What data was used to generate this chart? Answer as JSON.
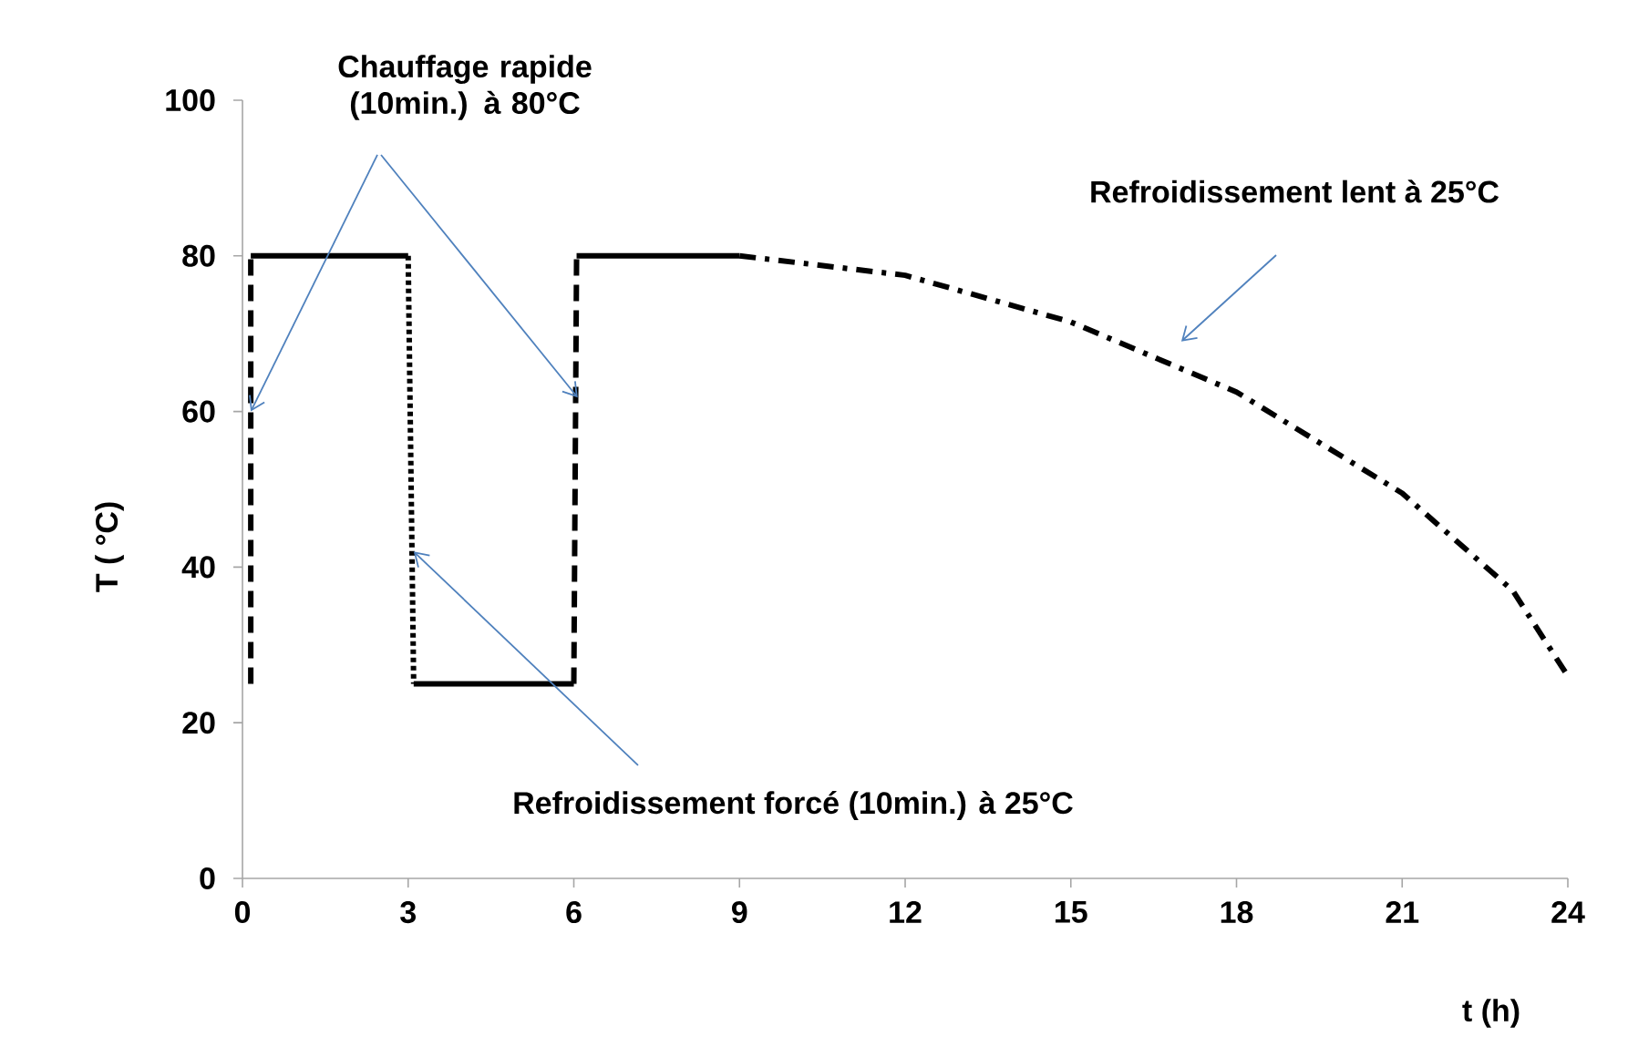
{
  "chart_data": {
    "type": "line",
    "xlabel": "t (h)",
    "ylabel": "T ( °C)",
    "xlim": [
      0,
      24
    ],
    "ylim": [
      0,
      100
    ],
    "xticks": [
      0,
      3,
      6,
      9,
      12,
      15,
      18,
      21,
      24
    ],
    "yticks": [
      0,
      20,
      40,
      60,
      80,
      100
    ],
    "grid": false,
    "marker": "none",
    "series": [
      {
        "color": "#000000",
        "line_style": "dashed",
        "x": [
          0.15,
          0.15
        ],
        "values": [
          25,
          80
        ]
      },
      {
        "color": "#000000",
        "line_style": "solid",
        "x": [
          0.15,
          3
        ],
        "values": [
          80,
          80
        ]
      },
      {
        "color": "#000000",
        "line_style": "dotted",
        "x": [
          3,
          3.1
        ],
        "values": [
          80,
          25
        ]
      },
      {
        "color": "#000000",
        "line_style": "solid",
        "x": [
          3.1,
          6
        ],
        "values": [
          25,
          25
        ]
      },
      {
        "color": "#000000",
        "line_style": "dashed",
        "x": [
          6,
          6.05
        ],
        "values": [
          25,
          80
        ]
      },
      {
        "color": "#000000",
        "line_style": "solid",
        "x": [
          6.05,
          9
        ],
        "values": [
          80,
          80
        ]
      },
      {
        "color": "#000000",
        "line_style": "dashdot",
        "x": [
          9,
          12,
          15,
          18,
          21,
          23,
          24
        ],
        "values": [
          80,
          77.5,
          71.5,
          62.5,
          49.5,
          37,
          26
        ]
      }
    ],
    "annotations": [
      {
        "text": "Chauffage rapide (10min.)  à 80°C",
        "x": 0.15,
        "y": 60
      },
      "Refroidissement lent à 25°C",
      {
        "text": "Refroidissement forcé (10min.) à 25°C",
        "x": 3.1,
        "y": 42
      }
    ]
  }
}
